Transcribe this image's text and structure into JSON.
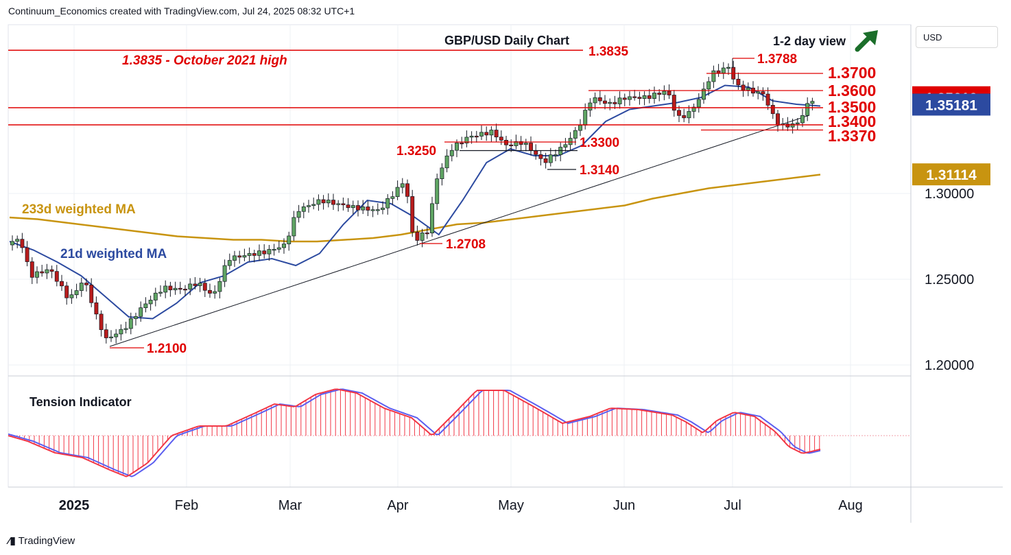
{
  "header": "Continuum_Economics created with TradingView.com, Jul 24, 2025 08:32 UTC+1",
  "currency": "USD",
  "footer_logo": "TradingView",
  "colors": {
    "level": "#e00000",
    "ma21": "#2c4aa0",
    "ma233": "#c89410",
    "up": "#2e7d32",
    "down": "#b71c1c",
    "tension_red": "#f23645",
    "tension_blue": "#5b5ef0"
  },
  "chart_data": {
    "type": "candlestick",
    "title": "GBP/USD Daily Chart",
    "view": "1-2 day view",
    "view_direction": "up",
    "ylim": [
      1.19,
      1.39
    ],
    "x_ticks": [
      "2025",
      "Feb",
      "Mar",
      "Apr",
      "May",
      "Jun",
      "Jul",
      "Aug"
    ],
    "y_ticks": [
      "1.20000",
      "1.25000",
      "1.30000"
    ],
    "price_badges": [
      {
        "value": "1.35610",
        "color": "#e00000"
      },
      {
        "value": "1.35181",
        "color": "#2c4aa0"
      },
      {
        "value": "1.31114",
        "color": "#c89410"
      }
    ],
    "levels": [
      {
        "value": 1.3835,
        "label": "1.3835"
      },
      {
        "value": 1.3788,
        "label": "1.3788"
      },
      {
        "value": 1.37,
        "label": "1.3700"
      },
      {
        "value": 1.36,
        "label": "1.3600"
      },
      {
        "value": 1.35,
        "label": "1.3500"
      },
      {
        "value": 1.34,
        "label": "1.3400"
      },
      {
        "value": 1.337,
        "label": "1.3370"
      },
      {
        "value": 1.33,
        "label": "1.3300"
      },
      {
        "value": 1.325,
        "label": "1.3250"
      },
      {
        "value": 1.314,
        "label": "1.3140"
      },
      {
        "value": 1.2708,
        "label": "1.2708"
      },
      {
        "value": 1.21,
        "label": "1.2100"
      }
    ],
    "annotations": [
      "1.3835 - October 2021 high",
      "233d weighted MA",
      "21d weighted MA"
    ],
    "series": [
      {
        "name": "21d weighted MA",
        "values": [
          1.272,
          1.267,
          1.26,
          1.252,
          1.24,
          1.228,
          1.227,
          1.236,
          1.248,
          1.252,
          1.26,
          1.262,
          1.258,
          1.265,
          1.282,
          1.296,
          1.294,
          1.286,
          1.276,
          1.296,
          1.318,
          1.326,
          1.322,
          1.322,
          1.328,
          1.342,
          1.349,
          1.351,
          1.353,
          1.356,
          1.363,
          1.362,
          1.354,
          1.352,
          1.351
        ]
      },
      {
        "name": "233d weighted MA",
        "values": [
          1.286,
          1.285,
          1.283,
          1.281,
          1.279,
          1.277,
          1.275,
          1.274,
          1.273,
          1.273,
          1.272,
          1.272,
          1.273,
          1.274,
          1.276,
          1.279,
          1.282,
          1.283,
          1.285,
          1.287,
          1.289,
          1.291,
          1.293,
          1.297,
          1.3,
          1.303,
          1.305,
          1.307,
          1.309,
          1.311
        ]
      }
    ],
    "indicator": {
      "name": "Tension Indicator"
    }
  }
}
